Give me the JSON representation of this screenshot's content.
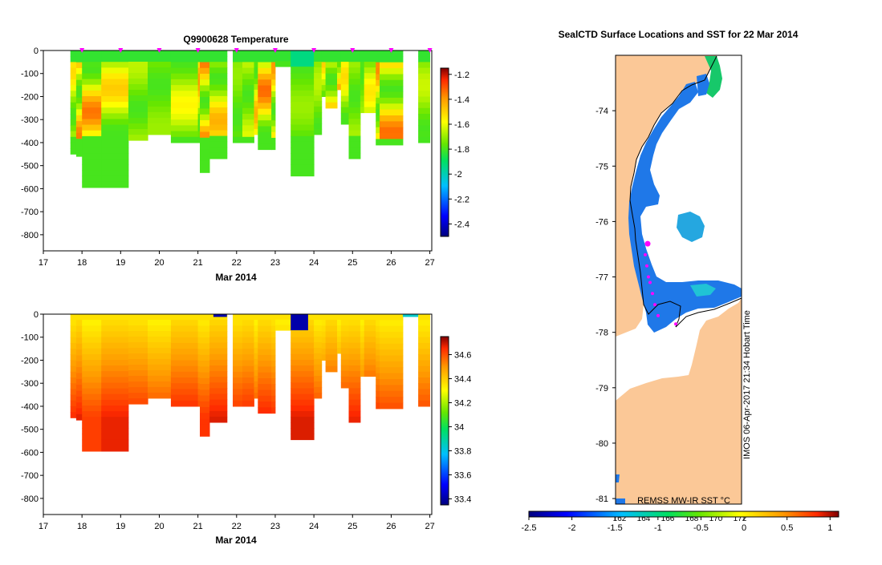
{
  "chart_data": [
    {
      "type": "heatmap",
      "title": "Q9900628  Temperature",
      "xlabel": "Mar 2014",
      "ylabel": "",
      "x_ticks": [
        "17",
        "18",
        "19",
        "20",
        "21",
        "22",
        "23",
        "24",
        "25",
        "26",
        "27"
      ],
      "y_ticks": [
        "0",
        "-100",
        "-200",
        "-300",
        "-400",
        "-500",
        "-600",
        "-700",
        "-800"
      ],
      "xlim": [
        17,
        27.05
      ],
      "ylim": [
        -870,
        0
      ],
      "colorbar": {
        "ticks": [
          "-1.2",
          "-1.4",
          "-1.6",
          "-1.8",
          "-2",
          "-2.2",
          "-2.4"
        ],
        "range": [
          -2.5,
          -1.15
        ]
      },
      "profile_days": [
        17.7,
        17.85,
        18.0,
        18.5,
        19.2,
        19.7,
        20.3,
        21.0,
        21.05,
        21.3,
        21.75,
        21.9,
        22.15,
        22.45,
        22.55,
        22.9,
        23.0,
        23.4,
        24.0,
        24.2,
        24.3,
        24.6,
        24.7,
        24.9,
        25.2,
        25.3,
        25.6,
        25.7,
        26.3,
        26.7,
        27.0
      ],
      "profile_max_depth": [
        450,
        460,
        595,
        595,
        390,
        365,
        400,
        400,
        530,
        470,
        10,
        400,
        400,
        365,
        430,
        430,
        70,
        545,
        365,
        200,
        250,
        170,
        320,
        470,
        270,
        270,
        410,
        410,
        10,
        400,
        400
      ],
      "markers_days": [
        18,
        19,
        20,
        21,
        22,
        23,
        24,
        25,
        26,
        27
      ]
    },
    {
      "type": "heatmap",
      "title": "",
      "xlabel": "Mar 2014",
      "ylabel": "",
      "x_ticks": [
        "17",
        "18",
        "19",
        "20",
        "21",
        "22",
        "23",
        "24",
        "25",
        "26",
        "27"
      ],
      "y_ticks": [
        "0",
        "-100",
        "-200",
        "-300",
        "-400",
        "-500",
        "-600",
        "-700",
        "-800"
      ],
      "xlim": [
        17,
        27.05
      ],
      "ylim": [
        -870,
        0
      ],
      "colorbar": {
        "ticks": [
          "34.6",
          "34.4",
          "34.2",
          "34",
          "33.8",
          "33.6",
          "33.4"
        ],
        "range": [
          33.35,
          34.75
        ]
      }
    },
    {
      "type": "scatter",
      "title": "SealCTD Surface Locations and SST for 22 Mar 2014",
      "y_ticks": [
        "-74",
        "-75",
        "-76",
        "-77",
        "-78",
        "-79",
        "-80",
        "-81"
      ],
      "ylim": [
        -81.1,
        -73.0
      ],
      "x_ticks": [
        "162",
        "164",
        "166",
        "168",
        "170",
        "172"
      ],
      "points_lat": [
        -76.4,
        -76.6,
        -76.8,
        -77.0,
        -77.1,
        -77.3,
        -77.5,
        -77.7,
        -77.85
      ],
      "colorbar": {
        "label": "REMSS MW-IR SST °C",
        "ticks": [
          "-2.5",
          "-2",
          "-1.5",
          "-1",
          "-0.5",
          "0",
          "0.5",
          "1"
        ],
        "range": [
          -2.5,
          1.1
        ]
      },
      "watermark": "IMOS 06-Apr-2017 21:34 Hobart Time"
    }
  ],
  "colors": {
    "land": "#fbc897",
    "marker": "#ff00ff",
    "frame": "#000000"
  }
}
